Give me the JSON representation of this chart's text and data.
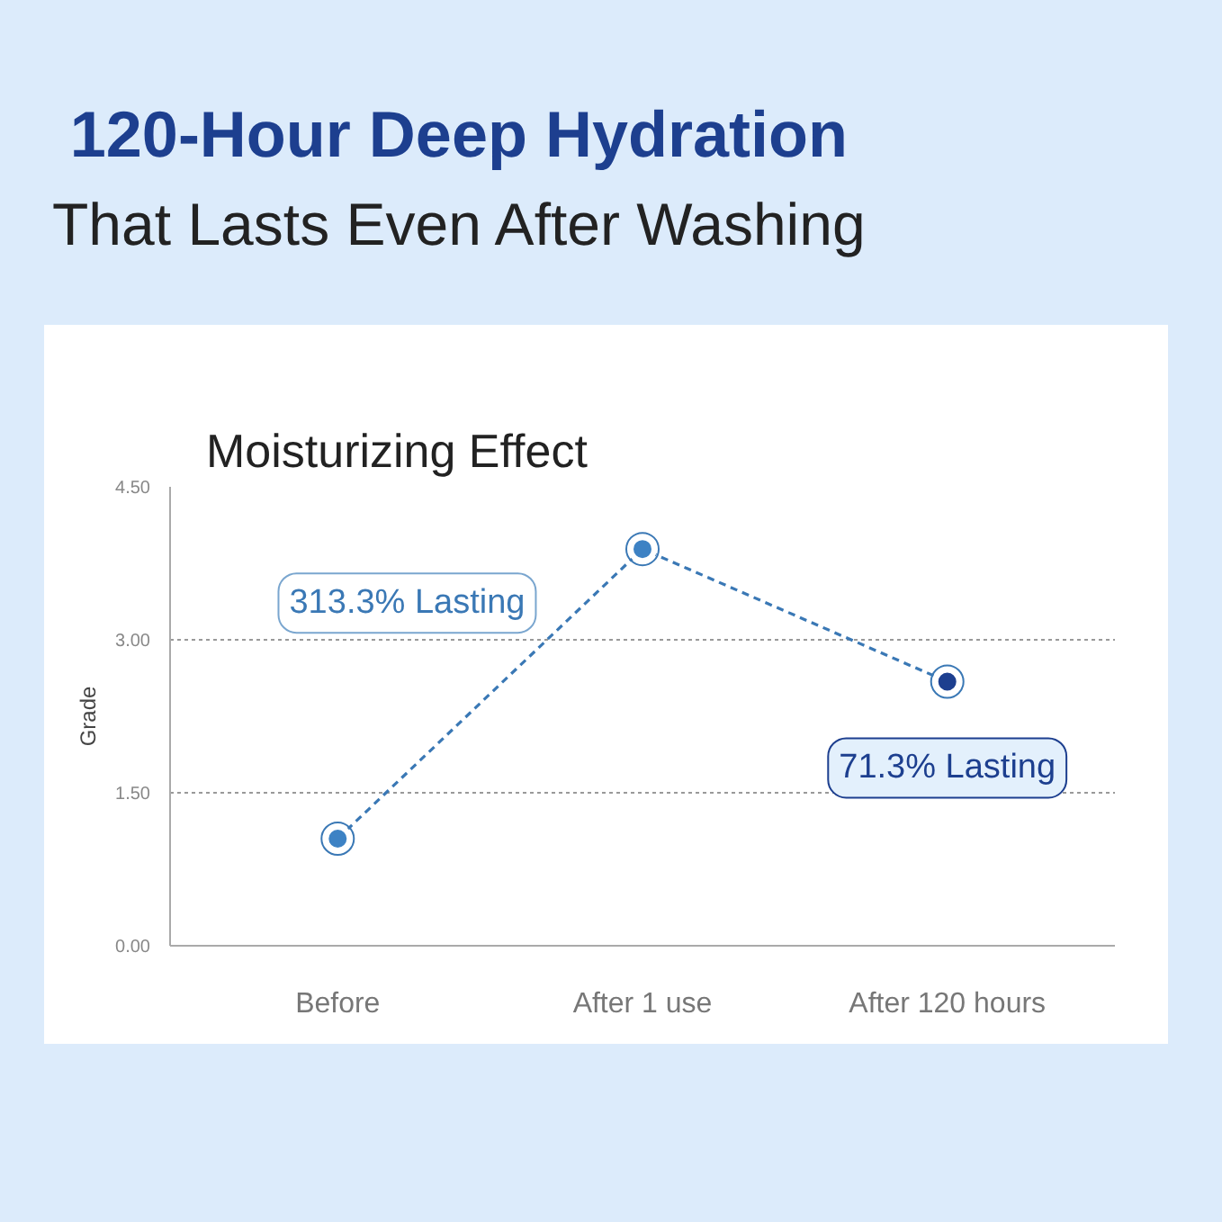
{
  "chart_data": {
    "type": "line",
    "title": "120-Hour Deep Hydration",
    "subtitle": "That Lasts Even After Washing",
    "ylabel": "Grade",
    "categories": [
      "Before",
      "After 1 use",
      "After 120 hours"
    ],
    "series": [
      {
        "color": "#3a78b5",
        "colors": [
          "#3d82c4",
          "#3d82c4",
          "#1d3f8f"
        ],
        "values": [
          1.05,
          3.89,
          2.59
        ]
      }
    ],
    "ylim": [
      0,
      4.5
    ],
    "yticks": [
      {
        "value": 0,
        "label": "0.00"
      },
      {
        "value": 1.5,
        "label": "1.50"
      },
      {
        "value": 3,
        "label": "3.00"
      },
      {
        "value": 4.5,
        "label": "4.50"
      }
    ],
    "grid": "y",
    "marker": "circle",
    "line_style": "dashed",
    "annotations": [
      "Moisturizing Effect",
      "313.3% Lasting",
      "71.3% Lasting"
    ]
  }
}
